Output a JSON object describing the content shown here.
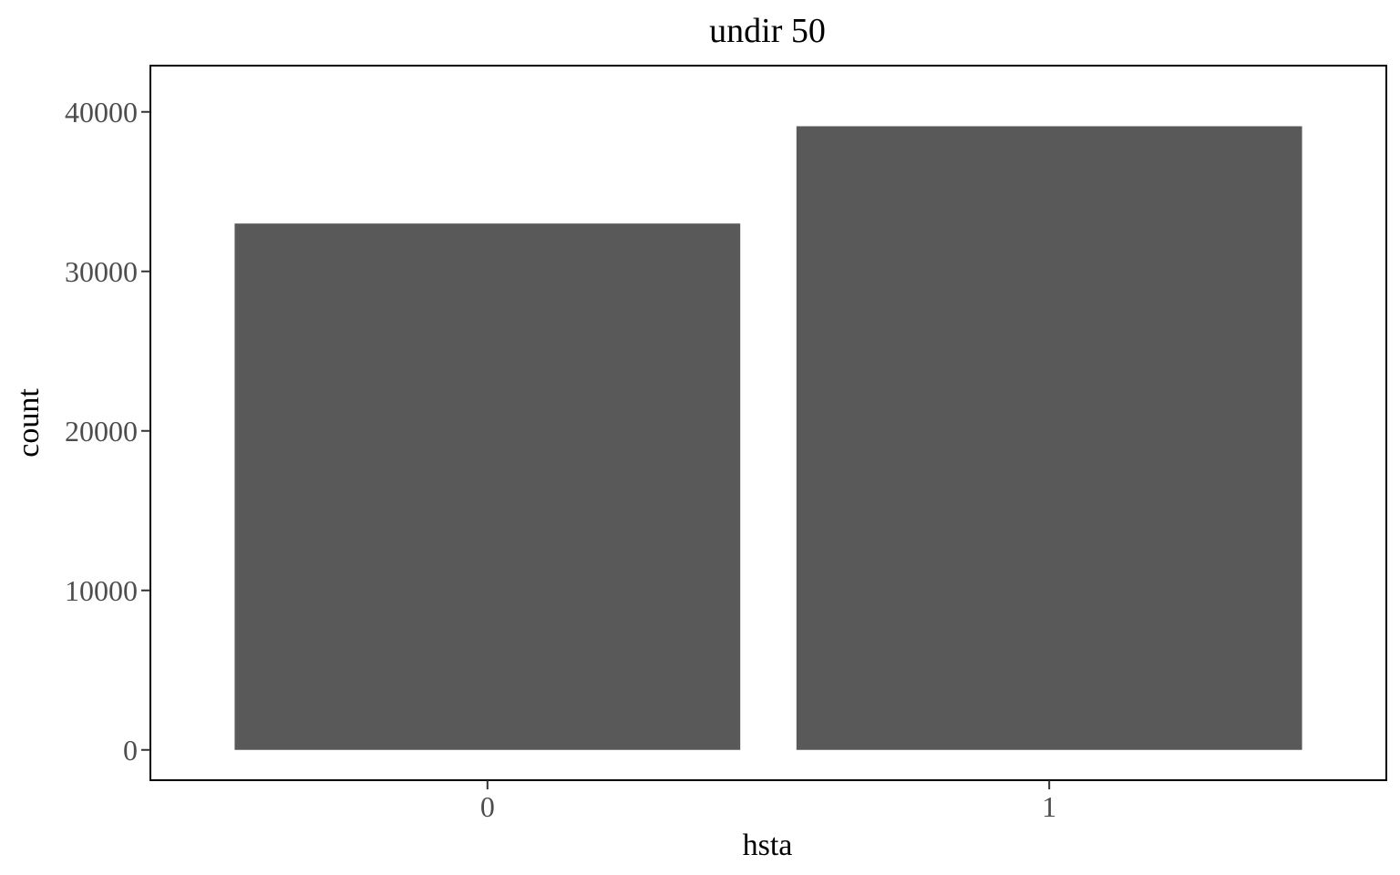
{
  "chart_data": {
    "type": "bar",
    "title": "undir 50",
    "xlabel": "hsta",
    "ylabel": "count",
    "categories": [
      "0",
      "1"
    ],
    "values": [
      33000,
      39100
    ],
    "ylim": [
      -1900,
      42900
    ],
    "yticks": [
      0,
      10000,
      20000,
      30000,
      40000
    ],
    "ytick_labels": [
      "0",
      "10000",
      "20000",
      "30000",
      "40000"
    ],
    "bar_color": "#595959",
    "grid": false,
    "legend": "none"
  }
}
